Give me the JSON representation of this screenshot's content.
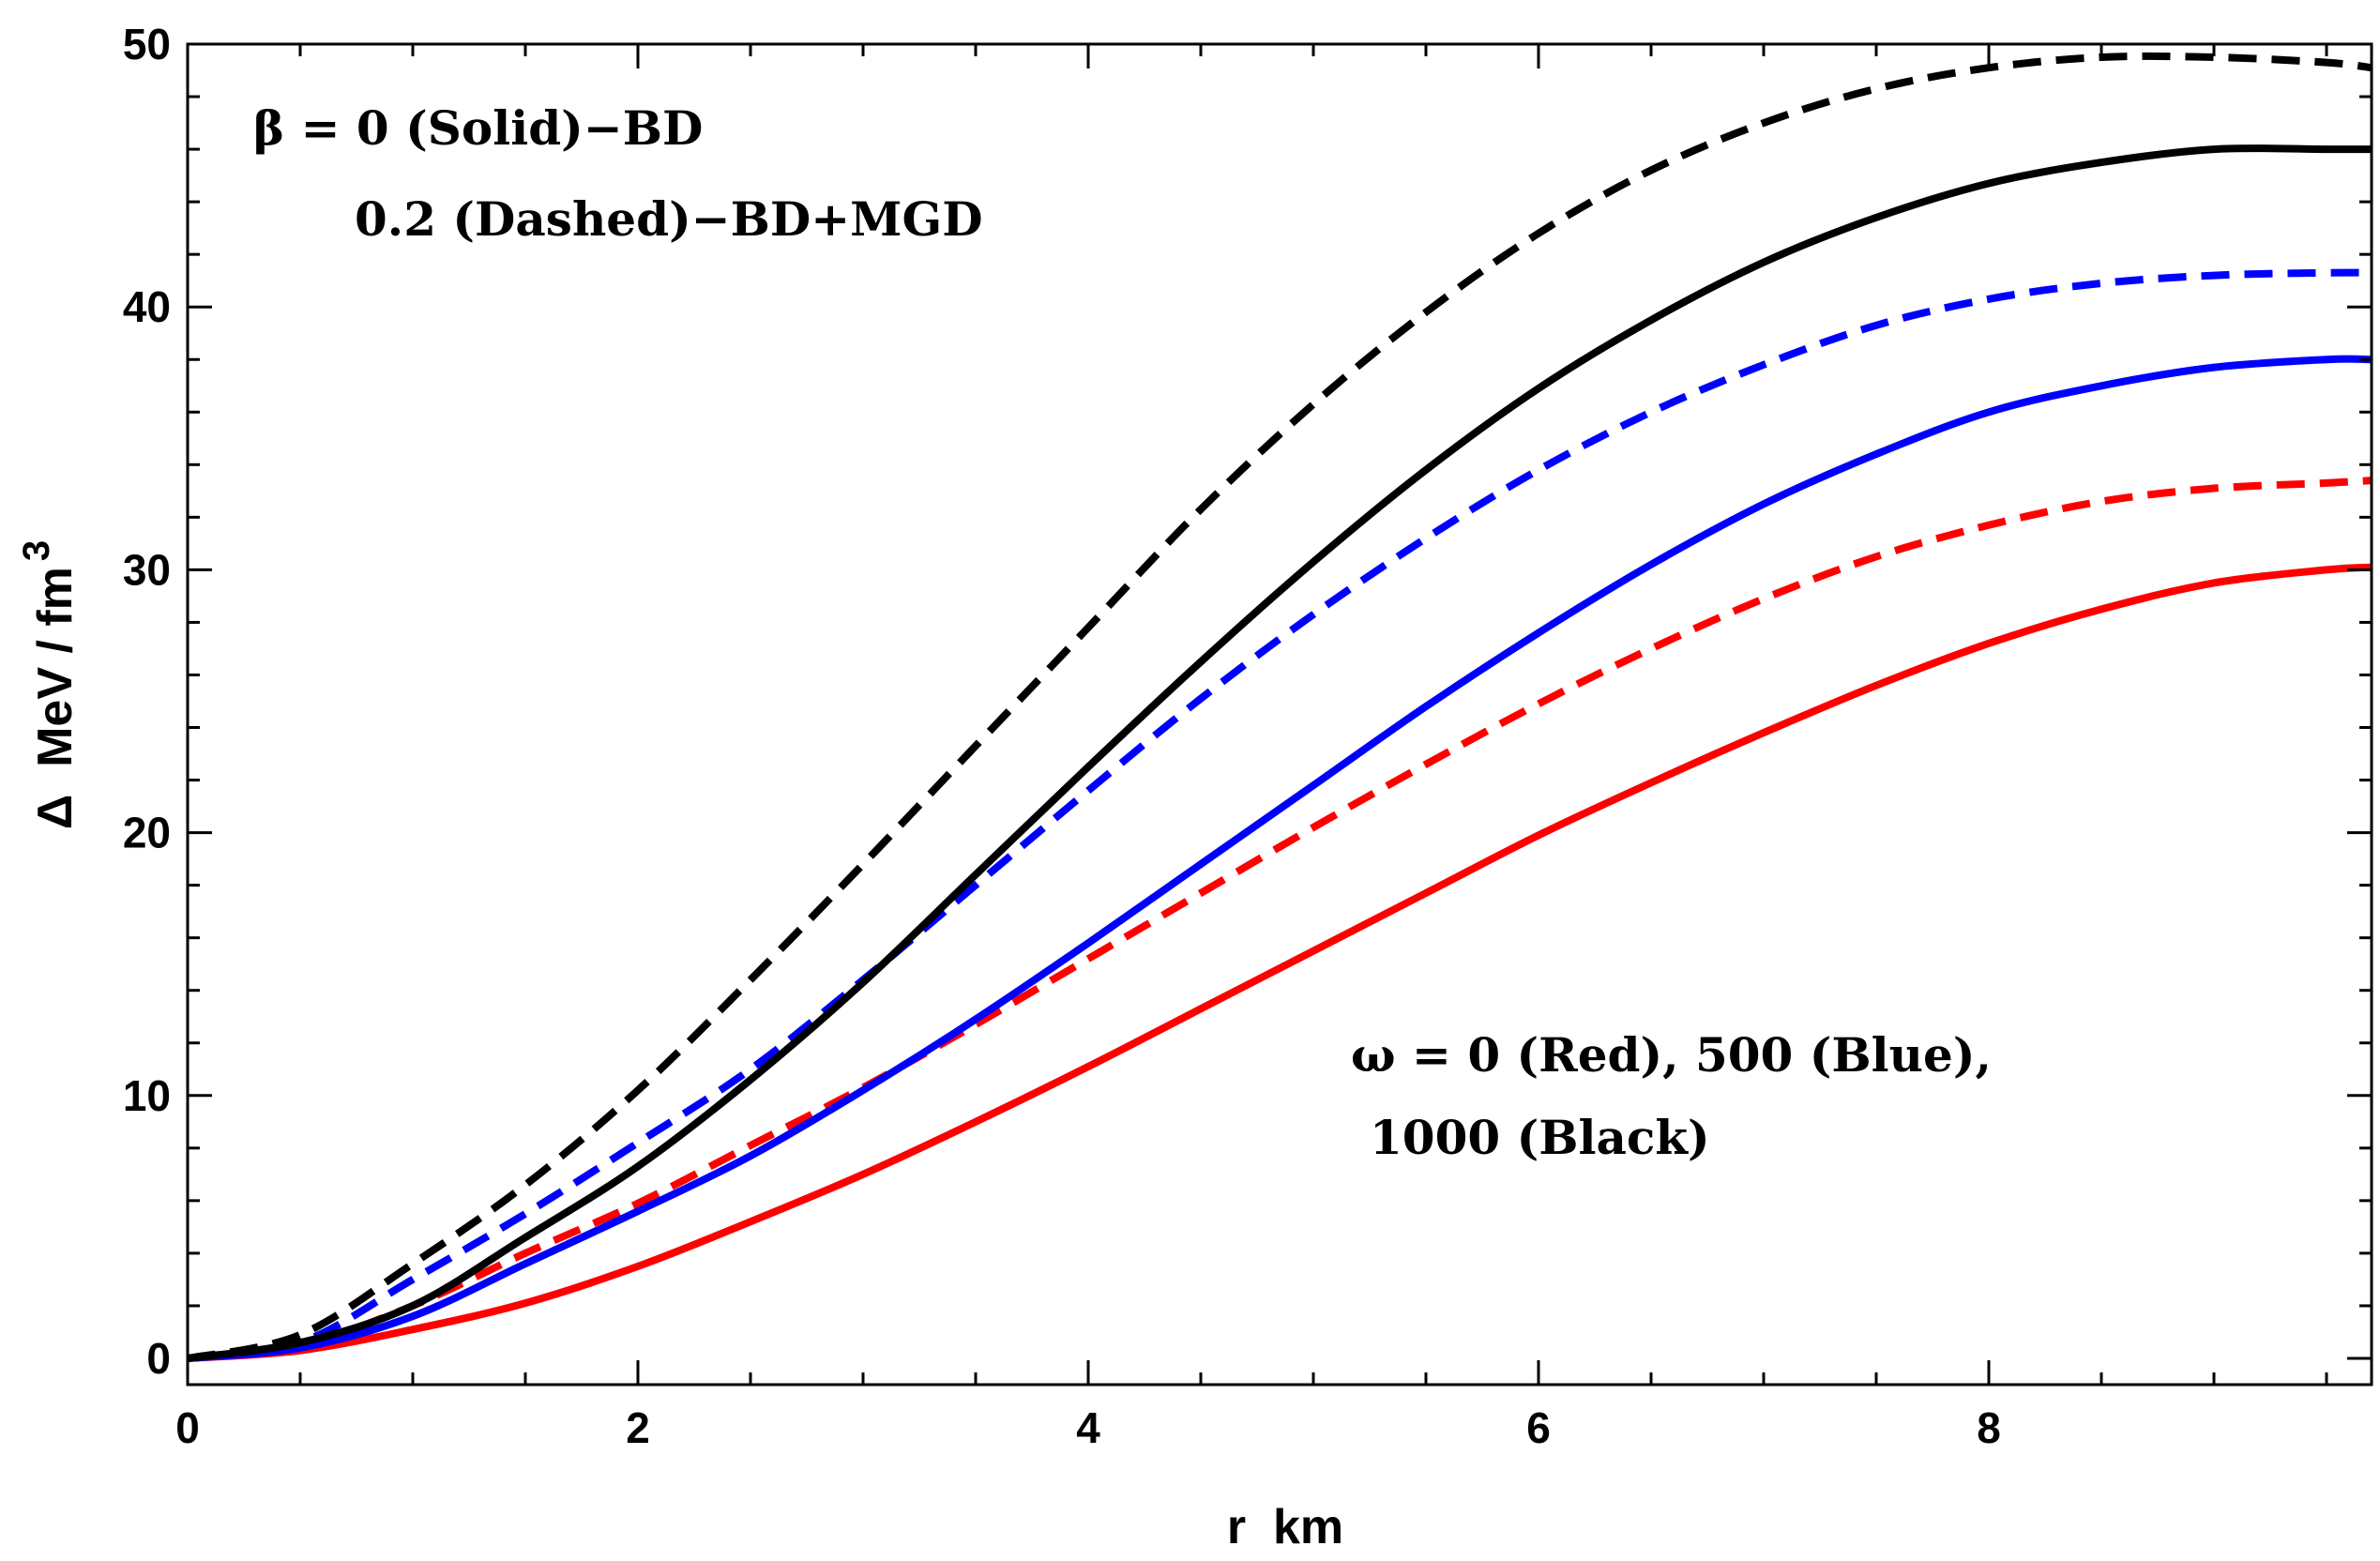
{
  "chart_data": {
    "type": "line",
    "title": "",
    "xlabel": "r  km",
    "ylabel": "Δ  MeV / fm",
    "ylabel_sup": "3",
    "xlim": [
      0,
      9.7
    ],
    "ylim": [
      -1,
      50
    ],
    "xticks": [
      0,
      2,
      4,
      6,
      8
    ],
    "yticks": [
      0,
      10,
      20,
      30,
      40,
      50
    ],
    "xtick_labels": [
      "0",
      "2",
      "4",
      "6",
      "8"
    ],
    "ytick_labels": [
      "0",
      "10",
      "20",
      "30",
      "40",
      "50"
    ],
    "annotations": {
      "beta_line1": "β = 0 (Solid)−BD",
      "beta_line2": "0.2 (Dashed)−BD+MGD",
      "omega_line1": "ω = 0 (Red), 500 (Blue),",
      "omega_line2": "1000 (Black)"
    },
    "x": [
      0,
      0.5,
      1,
      1.5,
      2,
      2.5,
      3,
      3.5,
      4,
      4.5,
      5,
      5.5,
      6,
      6.5,
      7,
      7.5,
      8,
      8.5,
      9,
      9.5,
      9.7
    ],
    "series": [
      {
        "name": "ω=0, β=0 (Red Solid)",
        "color": "#ff0000",
        "dash": "solid",
        "values": [
          0,
          0.3,
          1.1,
          2.1,
          3.5,
          5.2,
          7.0,
          9.0,
          11.1,
          13.3,
          15.5,
          17.7,
          19.9,
          21.9,
          23.8,
          25.6,
          27.2,
          28.5,
          29.5,
          30.0,
          30.1
        ]
      },
      {
        "name": "ω=0, β=0.2 (Red Dashed)",
        "color": "#ff0000",
        "dash": "dashed",
        "values": [
          0,
          0.5,
          2.0,
          4.0,
          5.9,
          8.1,
          10.3,
          12.7,
          15.2,
          17.7,
          20.2,
          22.6,
          24.9,
          27.0,
          28.9,
          30.5,
          31.7,
          32.6,
          33.1,
          33.3,
          33.4
        ]
      },
      {
        "name": "ω=500, β=0 (Blue Solid)",
        "color": "#0000ff",
        "dash": "solid",
        "values": [
          0,
          0.4,
          1.6,
          3.6,
          5.6,
          7.7,
          10.2,
          12.9,
          15.8,
          18.8,
          21.8,
          24.8,
          27.6,
          30.2,
          32.5,
          34.4,
          36.0,
          37.0,
          37.7,
          38.0,
          38.0
        ]
      },
      {
        "name": "ω=500, β=0.2 (Blue Dashed)",
        "color": "#0000ff",
        "dash": "dashed",
        "values": [
          0,
          0.6,
          3.0,
          5.5,
          8.2,
          11.0,
          14.4,
          18.0,
          21.6,
          25.1,
          28.3,
          31.2,
          33.8,
          36.0,
          37.8,
          39.3,
          40.3,
          40.9,
          41.2,
          41.3,
          41.3
        ]
      },
      {
        "name": "ω=1000, β=0 (Black Solid)",
        "color": "#000000",
        "dash": "solid",
        "values": [
          0,
          0.6,
          2.0,
          4.6,
          7.3,
          10.6,
          14.3,
          18.4,
          22.5,
          26.5,
          30.3,
          33.8,
          36.9,
          39.5,
          41.7,
          43.4,
          44.7,
          45.5,
          46.0,
          46.0,
          46.0
        ]
      },
      {
        "name": "ω=1000, β=0.2 (Black Dashed)",
        "color": "#000000",
        "dash": "dashed",
        "values": [
          0,
          0.9,
          3.6,
          6.6,
          10.2,
          14.4,
          18.8,
          23.3,
          27.8,
          32.3,
          36.3,
          39.8,
          42.8,
          45.2,
          47.0,
          48.3,
          49.1,
          49.5,
          49.5,
          49.3,
          49.1
        ]
      }
    ]
  }
}
